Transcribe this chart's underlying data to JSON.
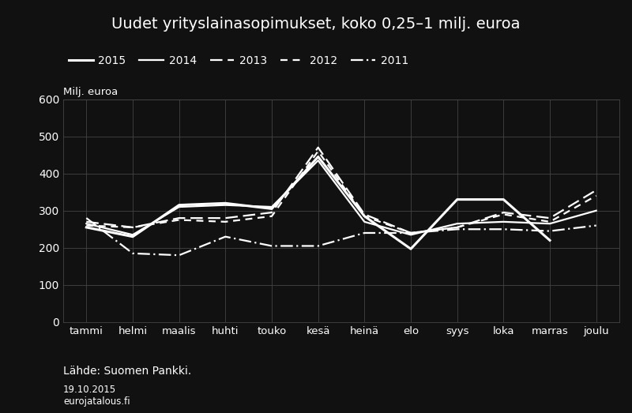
{
  "title": "Uudet yrityslainasopimukset, koko 0,25–1 milj. euroa",
  "ylabel": "Milj. euroa",
  "source_text": "Lähde: Suomen Pankki.",
  "date_text_1": "19.10.2015",
  "date_text_2": "eurojatalous.fi",
  "months": [
    "tammi",
    "helmi",
    "maalis",
    "huhti",
    "touko",
    "kesä",
    "heinä",
    "elo",
    "syys",
    "loka",
    "marras",
    "joulu"
  ],
  "ylim": [
    0,
    600
  ],
  "yticks": [
    0,
    100,
    200,
    300,
    400,
    500,
    600
  ],
  "background_color": "#111111",
  "plot_bg_color": "#111111",
  "line_color": "#ffffff",
  "grid_color": "#444444",
  "series": [
    {
      "label": "2015",
      "linestyle": "solid",
      "linewidth": 2.2,
      "dash": null,
      "data": [
        255,
        230,
        315,
        320,
        305,
        445,
        285,
        197,
        330,
        330,
        220,
        null
      ]
    },
    {
      "label": "2014",
      "linestyle": "solid",
      "linewidth": 1.6,
      "dash": null,
      "data": [
        265,
        235,
        310,
        315,
        310,
        435,
        270,
        235,
        265,
        270,
        265,
        300
      ]
    },
    {
      "label": "2013",
      "linestyle": "dashed",
      "linewidth": 1.6,
      "dash": [
        7,
        3
      ],
      "data": [
        270,
        255,
        280,
        280,
        295,
        470,
        290,
        240,
        255,
        295,
        280,
        355
      ]
    },
    {
      "label": "2012",
      "linestyle": "dashed",
      "linewidth": 1.6,
      "dash": [
        4,
        3
      ],
      "data": [
        260,
        255,
        275,
        270,
        285,
        460,
        285,
        240,
        255,
        290,
        270,
        340
      ]
    },
    {
      "label": "2011",
      "linestyle": "dashed",
      "linewidth": 1.6,
      "dash": [
        7,
        2,
        1,
        2
      ],
      "data": [
        280,
        185,
        180,
        230,
        205,
        205,
        240,
        240,
        250,
        250,
        245,
        260
      ]
    }
  ]
}
